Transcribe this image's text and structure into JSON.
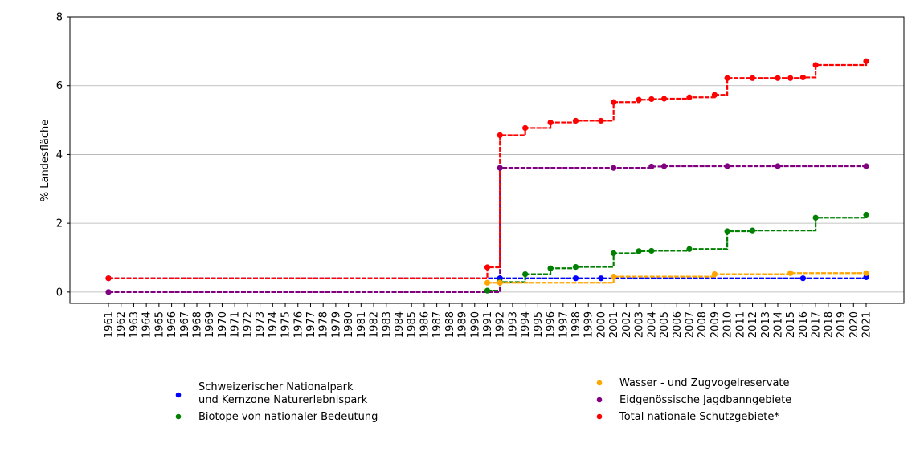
{
  "chart_data": {
    "type": "line",
    "title": "",
    "xlabel": "",
    "ylabel": "% Landesfläche",
    "ylim": [
      -0.33,
      8
    ],
    "yticks": [
      0,
      2,
      4,
      6,
      8
    ],
    "grid": "horizontal",
    "legend_placement": "bottom",
    "categories": [
      "1961",
      "1962",
      "1963",
      "1964",
      "1965",
      "1966",
      "1967",
      "1968",
      "1969",
      "1970",
      "1971",
      "1972",
      "1973",
      "1974",
      "1975",
      "1976",
      "1977",
      "1978",
      "1979",
      "1980",
      "1981",
      "1982",
      "1983",
      "1984",
      "1985",
      "1986",
      "1987",
      "1988",
      "1989",
      "1990",
      "1991",
      "1992",
      "1993",
      "1994",
      "1995",
      "1996",
      "1997",
      "1998",
      "1999",
      "2000",
      "2001",
      "2002",
      "2003",
      "2004",
      "2005",
      "2006",
      "2007",
      "2008",
      "2009",
      "2010",
      "2011",
      "2012",
      "2013",
      "2014",
      "2015",
      "2016",
      "2017",
      "2018",
      "2019",
      "2020",
      "2021"
    ],
    "series": [
      {
        "name": "Schweizerischer Nationalpark\nund Kernzone Naturerlebnispark",
        "color": "#0000ff",
        "points": [
          [
            1961,
            0.4
          ],
          [
            1992,
            0.4
          ],
          [
            1998,
            0.4
          ],
          [
            2000,
            0.4
          ],
          [
            2016,
            0.4
          ],
          [
            2021,
            0.43
          ]
        ]
      },
      {
        "name": "Biotope von nationaler Bedeutung",
        "color": "#008000",
        "points": [
          [
            1991,
            0.04
          ],
          [
            1992,
            0.29
          ],
          [
            1994,
            0.52
          ],
          [
            1996,
            0.69
          ],
          [
            1998,
            0.73
          ],
          [
            2001,
            1.13
          ],
          [
            2003,
            1.19
          ],
          [
            2004,
            1.2
          ],
          [
            2007,
            1.25
          ],
          [
            2010,
            1.77
          ],
          [
            2012,
            1.79
          ],
          [
            2017,
            2.16
          ],
          [
            2021,
            2.25
          ]
        ]
      },
      {
        "name": "Wasser - und Zugvogelreservate",
        "color": "#ffa500",
        "points": [
          [
            1991,
            0.27
          ],
          [
            1992,
            0.27
          ],
          [
            2001,
            0.45
          ],
          [
            2009,
            0.52
          ],
          [
            2015,
            0.55
          ],
          [
            2021,
            0.55
          ]
        ]
      },
      {
        "name": "Eidgenössische Jagdbanngebiete",
        "color": "#800080",
        "points": [
          [
            1961,
            0.0
          ],
          [
            1992,
            3.61
          ],
          [
            2001,
            3.61
          ],
          [
            2004,
            3.65
          ],
          [
            2005,
            3.66
          ],
          [
            2010,
            3.66
          ],
          [
            2014,
            3.66
          ],
          [
            2021,
            3.66
          ]
        ]
      },
      {
        "name": "Total nationale Schutzgebiete*",
        "color": "#ff0000",
        "points": [
          [
            1961,
            0.4
          ],
          [
            1991,
            0.72
          ],
          [
            1992,
            4.56
          ],
          [
            1994,
            4.77
          ],
          [
            1996,
            4.93
          ],
          [
            1998,
            4.98
          ],
          [
            2000,
            4.98
          ],
          [
            2001,
            5.52
          ],
          [
            2003,
            5.59
          ],
          [
            2004,
            5.61
          ],
          [
            2005,
            5.62
          ],
          [
            2007,
            5.66
          ],
          [
            2009,
            5.73
          ],
          [
            2010,
            6.22
          ],
          [
            2012,
            6.22
          ],
          [
            2014,
            6.22
          ],
          [
            2015,
            6.22
          ],
          [
            2016,
            6.24
          ],
          [
            2017,
            6.6
          ],
          [
            2021,
            6.71
          ]
        ]
      }
    ]
  }
}
